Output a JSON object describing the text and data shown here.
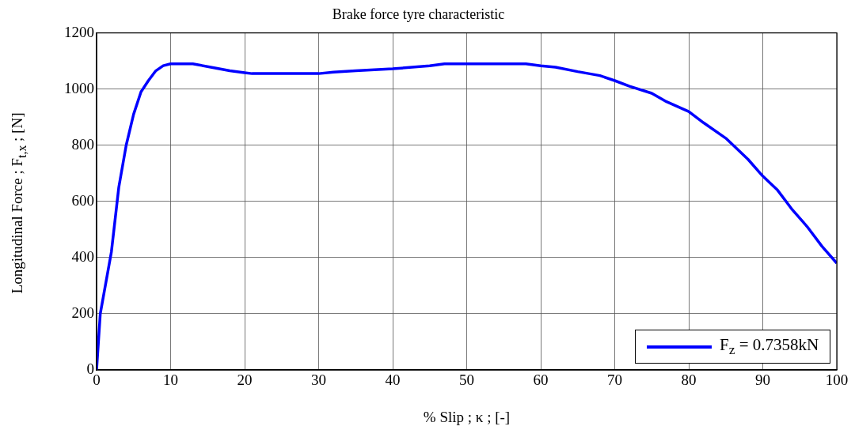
{
  "chart_data": {
    "type": "line",
    "title": "Brake force tyre characteristic",
    "xlabel": "% Slip ; κ ; [-]",
    "ylabel": "Longitudinal Force ; F$_{t,x}$ ; [N]",
    "xlim": [
      0,
      100
    ],
    "xticks": [
      0,
      10,
      20,
      30,
      40,
      50,
      60,
      70,
      80,
      90,
      100
    ],
    "ylim": [
      0,
      1200
    ],
    "yticks": [
      0,
      200,
      400,
      600,
      800,
      1000,
      1200
    ],
    "grid": true,
    "legend": "bottom right",
    "marker": "none",
    "line_style": "solid",
    "series": [
      {
        "name": "F$_{z}$ = 0.7358kN",
        "color": "#0000ff",
        "x": [
          0,
          0.5,
          2,
          3,
          4,
          5,
          6,
          7,
          8,
          9,
          10,
          13,
          16,
          18,
          20,
          21,
          30,
          32,
          35,
          40,
          45,
          47,
          58,
          60,
          62,
          65,
          68,
          70,
          72,
          75,
          77,
          80,
          82,
          85,
          88,
          90,
          92,
          94,
          96,
          98,
          100
        ],
        "values": [
          0,
          200,
          420,
          650,
          800,
          910,
          990,
          1030,
          1065,
          1083,
          1090,
          1090,
          1075,
          1065,
          1058,
          1055,
          1055,
          1060,
          1065,
          1072,
          1083,
          1090,
          1090,
          1083,
          1078,
          1062,
          1048,
          1030,
          1010,
          985,
          955,
          920,
          880,
          825,
          750,
          690,
          640,
          570,
          510,
          440,
          380
        ]
      }
    ]
  }
}
